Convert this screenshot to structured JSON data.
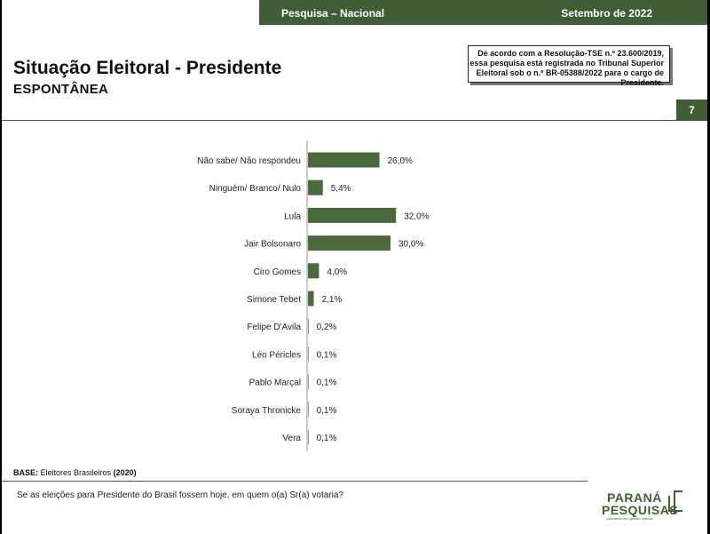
{
  "header": {
    "survey_label": "Pesquisa – Nacional",
    "date_label": "Setembro de 2022"
  },
  "title": "Situação Eleitoral - Presidente",
  "subtitle": "ESPONTÂNEA",
  "registration_notice": "De acordo com a Resolução-TSE n.º 23.600/2019, essa pesquisa está registrada no Tribunal Superior Eleitoral sob o n.º BR-05388/2022 para o cargo de Presidente.",
  "page_number": "7",
  "base": {
    "label": "BASE:",
    "text": "Eleitores Brasileiros",
    "count": "(2020)"
  },
  "question": "Se as eleições para Presidente do Brasil fossem hoje, em quem o(a) Sr(a) votaria?",
  "logo": {
    "line1": "PARANÁ",
    "line2": "PESQUISAS",
    "tagline": "Liderando em opinião pública"
  },
  "colors": {
    "brand": "#3f5e35",
    "bar": "#4a6a3e"
  },
  "chart_data": {
    "type": "bar",
    "orientation": "horizontal",
    "categories": [
      "Não sabe/ Não respondeu",
      "Ninguém/ Branco/ Nulo",
      "Lula",
      "Jair Bolsonaro",
      "Ciro Gomes",
      "Simone Tebet",
      "Felipe D'Avila",
      "Léo Péricles",
      "Pablo Marçal",
      "Soraya Thronicke",
      "Vera"
    ],
    "values": [
      26.0,
      5.4,
      32.0,
      30.0,
      4.0,
      2.1,
      0.2,
      0.1,
      0.1,
      0.1,
      0.1
    ],
    "value_labels": [
      "26,0%",
      "5,4%",
      "32,0%",
      "30,0%",
      "4,0%",
      "2,1%",
      "0,2%",
      "0,1%",
      "0,1%",
      "0,1%",
      "0,1%"
    ],
    "xlim": [
      0,
      40
    ],
    "grid": false,
    "legend": "none"
  }
}
